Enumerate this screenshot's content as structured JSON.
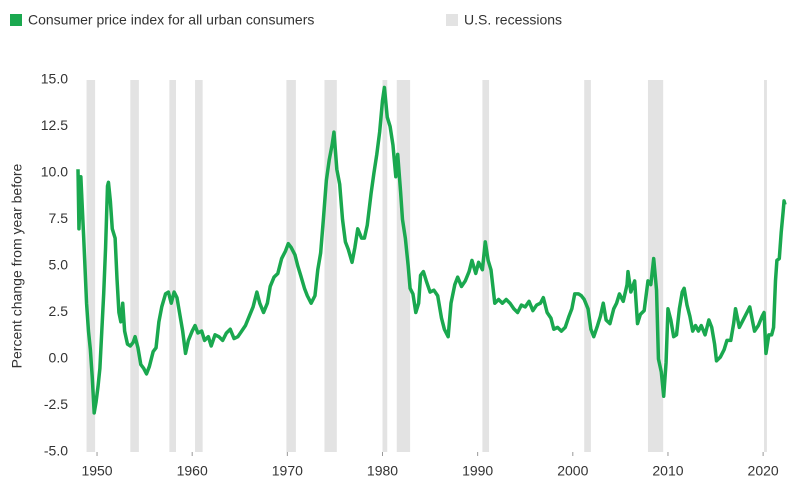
{
  "chart_data": {
    "type": "line",
    "y_label": "Percent change from year before",
    "x": [
      1948.0,
      1948.1,
      1948.3,
      1948.6,
      1948.9,
      1949.1,
      1949.3,
      1949.5,
      1949.7,
      1949.9,
      1950.1,
      1950.3,
      1950.5,
      1950.7,
      1950.9,
      1951.1,
      1951.2,
      1951.4,
      1951.6,
      1951.9,
      1952.1,
      1952.3,
      1952.5,
      1952.7,
      1952.9,
      1953.2,
      1953.5,
      1953.8,
      1954.0,
      1954.3,
      1954.6,
      1954.9,
      1955.2,
      1955.5,
      1955.9,
      1956.2,
      1956.5,
      1956.8,
      1957.2,
      1957.5,
      1957.8,
      1958.1,
      1958.4,
      1958.7,
      1959.0,
      1959.3,
      1959.6,
      1960.0,
      1960.3,
      1960.6,
      1961.0,
      1961.3,
      1961.7,
      1962.0,
      1962.4,
      1962.8,
      1963.2,
      1963.6,
      1964.0,
      1964.4,
      1964.8,
      1965.2,
      1965.6,
      1966.0,
      1966.4,
      1966.8,
      1967.1,
      1967.5,
      1967.9,
      1968.2,
      1968.6,
      1969.0,
      1969.4,
      1969.8,
      1970.1,
      1970.4,
      1970.8,
      1971.1,
      1971.4,
      1971.8,
      1972.1,
      1972.5,
      1972.9,
      1973.2,
      1973.5,
      1973.8,
      1974.1,
      1974.4,
      1974.7,
      1974.9,
      1975.2,
      1975.5,
      1975.8,
      1976.1,
      1976.4,
      1976.8,
      1977.1,
      1977.4,
      1977.8,
      1978.1,
      1978.4,
      1978.8,
      1979.1,
      1979.4,
      1979.7,
      1980.0,
      1980.2,
      1980.5,
      1980.8,
      1981.1,
      1981.4,
      1981.6,
      1981.9,
      1982.1,
      1982.4,
      1982.7,
      1982.9,
      1983.2,
      1983.5,
      1983.8,
      1984.0,
      1984.3,
      1984.6,
      1985.0,
      1985.4,
      1985.8,
      1986.2,
      1986.5,
      1986.9,
      1987.2,
      1987.6,
      1987.9,
      1988.3,
      1988.7,
      1989.1,
      1989.4,
      1989.8,
      1990.1,
      1990.5,
      1990.8,
      1991.1,
      1991.4,
      1991.8,
      1992.2,
      1992.6,
      1993.0,
      1993.4,
      1993.8,
      1994.2,
      1994.6,
      1995.0,
      1995.4,
      1995.8,
      1996.2,
      1996.6,
      1996.9,
      1997.3,
      1997.7,
      1998.0,
      1998.4,
      1998.8,
      1999.2,
      1999.6,
      1999.9,
      2000.2,
      2000.6,
      2000.9,
      2001.2,
      2001.6,
      2001.9,
      2002.2,
      2002.6,
      2002.9,
      2003.2,
      2003.5,
      2003.9,
      2004.3,
      2004.6,
      2004.9,
      2005.3,
      2005.7,
      2005.8,
      2006.1,
      2006.5,
      2006.8,
      2007.1,
      2007.5,
      2007.9,
      2008.2,
      2008.5,
      2008.8,
      2009.0,
      2009.3,
      2009.55,
      2009.8,
      2010.0,
      2010.3,
      2010.6,
      2010.9,
      2011.2,
      2011.5,
      2011.7,
      2012.0,
      2012.3,
      2012.6,
      2012.9,
      2013.2,
      2013.5,
      2013.9,
      2014.3,
      2014.6,
      2014.9,
      2015.1,
      2015.5,
      2015.9,
      2016.2,
      2016.6,
      2016.9,
      2017.1,
      2017.5,
      2017.9,
      2018.3,
      2018.6,
      2018.9,
      2019.1,
      2019.5,
      2019.9,
      2020.1,
      2020.3,
      2020.6,
      2020.9,
      2021.1,
      2021.3,
      2021.45,
      2021.7,
      2021.9,
      2022.1,
      2022.2,
      2022.3
    ],
    "series": [
      {
        "name": "Consumer price index for all urban consumers",
        "color": "#1aa84f",
        "values": [
          10.2,
          7.0,
          9.8,
          6.5,
          3.0,
          1.5,
          0.5,
          -1.0,
          -2.9,
          -2.3,
          -1.5,
          -0.5,
          1.5,
          3.5,
          6.0,
          9.3,
          9.5,
          8.5,
          7.0,
          6.5,
          4.3,
          2.5,
          2.0,
          3.0,
          1.5,
          0.8,
          0.7,
          0.9,
          1.2,
          0.6,
          -0.3,
          -0.5,
          -0.8,
          -0.4,
          0.4,
          0.6,
          2.0,
          2.8,
          3.5,
          3.6,
          3.0,
          3.6,
          3.3,
          2.4,
          1.5,
          0.3,
          1.0,
          1.5,
          1.8,
          1.4,
          1.5,
          1.0,
          1.2,
          0.7,
          1.3,
          1.2,
          1.0,
          1.4,
          1.6,
          1.1,
          1.2,
          1.5,
          1.8,
          2.3,
          2.8,
          3.6,
          3.0,
          2.5,
          3.0,
          3.9,
          4.4,
          4.6,
          5.4,
          5.8,
          6.2,
          6.0,
          5.6,
          5.0,
          4.5,
          3.8,
          3.4,
          3.0,
          3.4,
          4.8,
          5.7,
          7.6,
          9.6,
          10.7,
          11.5,
          12.2,
          10.2,
          9.4,
          7.5,
          6.3,
          5.9,
          5.2,
          6.0,
          7.0,
          6.5,
          6.5,
          7.2,
          8.9,
          10.0,
          11.0,
          12.2,
          13.9,
          14.6,
          13.0,
          12.5,
          11.5,
          9.8,
          11.0,
          9.0,
          7.5,
          6.5,
          5.0,
          3.8,
          3.5,
          2.5,
          3.0,
          4.5,
          4.7,
          4.2,
          3.6,
          3.7,
          3.4,
          2.2,
          1.6,
          1.2,
          3.0,
          4.0,
          4.4,
          3.9,
          4.2,
          4.7,
          5.3,
          4.6,
          5.2,
          4.8,
          6.3,
          5.3,
          4.8,
          3.0,
          3.2,
          3.0,
          3.2,
          3.0,
          2.7,
          2.5,
          2.9,
          2.8,
          3.1,
          2.6,
          2.9,
          3.0,
          3.3,
          2.5,
          2.2,
          1.6,
          1.7,
          1.5,
          1.7,
          2.3,
          2.7,
          3.5,
          3.5,
          3.4,
          3.2,
          2.7,
          1.6,
          1.2,
          1.8,
          2.3,
          3.0,
          2.1,
          1.9,
          2.7,
          3.0,
          3.5,
          3.1,
          4.0,
          4.7,
          3.6,
          4.2,
          1.9,
          2.4,
          2.6,
          4.2,
          4.0,
          5.4,
          3.7,
          0.0,
          -0.7,
          -2.0,
          -0.2,
          2.7,
          2.1,
          1.2,
          1.3,
          2.7,
          3.6,
          3.8,
          2.9,
          2.3,
          1.5,
          1.8,
          1.5,
          1.8,
          1.3,
          2.1,
          1.7,
          0.8,
          -0.1,
          0.1,
          0.5,
          1.0,
          1.0,
          1.9,
          2.7,
          1.7,
          2.1,
          2.5,
          2.8,
          2.0,
          1.5,
          1.8,
          2.3,
          2.5,
          0.3,
          1.3,
          1.3,
          1.7,
          4.2,
          5.3,
          5.4,
          6.8,
          7.9,
          8.5,
          8.3
        ]
      }
    ],
    "recessions": {
      "name": "U.S. recessions",
      "color": "#e3e3e3",
      "periods": [
        [
          1948.9,
          1949.8
        ],
        [
          1953.5,
          1954.4
        ],
        [
          1957.6,
          1958.3
        ],
        [
          1960.3,
          1961.1
        ],
        [
          1969.9,
          1970.9
        ],
        [
          1973.9,
          1975.2
        ],
        [
          1980.0,
          1980.5
        ],
        [
          1981.5,
          1982.9
        ],
        [
          1990.5,
          1991.2
        ],
        [
          2001.2,
          2001.9
        ],
        [
          2007.9,
          2009.5
        ],
        [
          2020.1,
          2020.4
        ]
      ]
    },
    "xlim": [
      1948.0,
      2022.3
    ],
    "xticks": [
      1950,
      1960,
      1970,
      1980,
      1990,
      2000,
      2010,
      2020
    ],
    "ylim": [
      -5,
      15
    ],
    "yticks": [
      {
        "value": -5,
        "label": "-5.0"
      },
      {
        "value": -2.5,
        "label": "-2.5"
      },
      {
        "value": 0,
        "label": "0.0"
      },
      {
        "value": 2.5,
        "label": "2.5"
      },
      {
        "value": 5,
        "label": "5.0"
      },
      {
        "value": 7.5,
        "label": "7.5"
      },
      {
        "value": 10,
        "label": "10.0"
      },
      {
        "value": 12.5,
        "label": "12.5"
      },
      {
        "value": 15,
        "label": "15.0"
      }
    ]
  }
}
